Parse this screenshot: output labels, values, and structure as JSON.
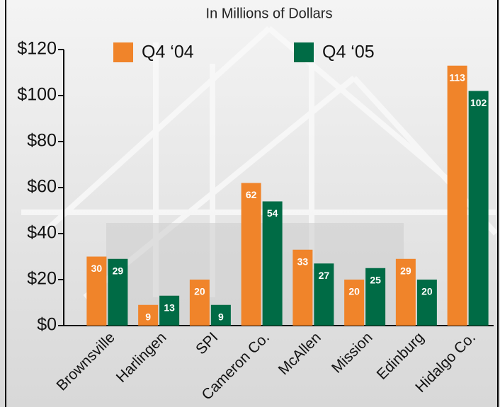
{
  "chart_data": {
    "type": "bar",
    "title": "In Millions of Dollars",
    "categories": [
      "Brownsville",
      "Harlingen",
      "SPI",
      "Cameron Co.",
      "McAllen",
      "Mission",
      "Edinburg",
      "Hidalgo Co."
    ],
    "series": [
      {
        "name": "Q4 ‘04",
        "color": "#f0842a",
        "values": [
          30,
          9,
          20,
          62,
          33,
          20,
          29,
          113
        ]
      },
      {
        "name": "Q4 ‘05",
        "color": "#006b45",
        "values": [
          29,
          13,
          9,
          54,
          27,
          25,
          20,
          102
        ]
      }
    ],
    "ylim": [
      0,
      120
    ],
    "yticks": [
      {
        "value": 0,
        "label": "$0"
      },
      {
        "value": 20,
        "label": "$20"
      },
      {
        "value": 40,
        "label": "$40"
      },
      {
        "value": 60,
        "label": "$60"
      },
      {
        "value": 80,
        "label": "$80"
      },
      {
        "value": 100,
        "label": "$100"
      },
      {
        "value": 120,
        "label": "$120"
      }
    ]
  }
}
